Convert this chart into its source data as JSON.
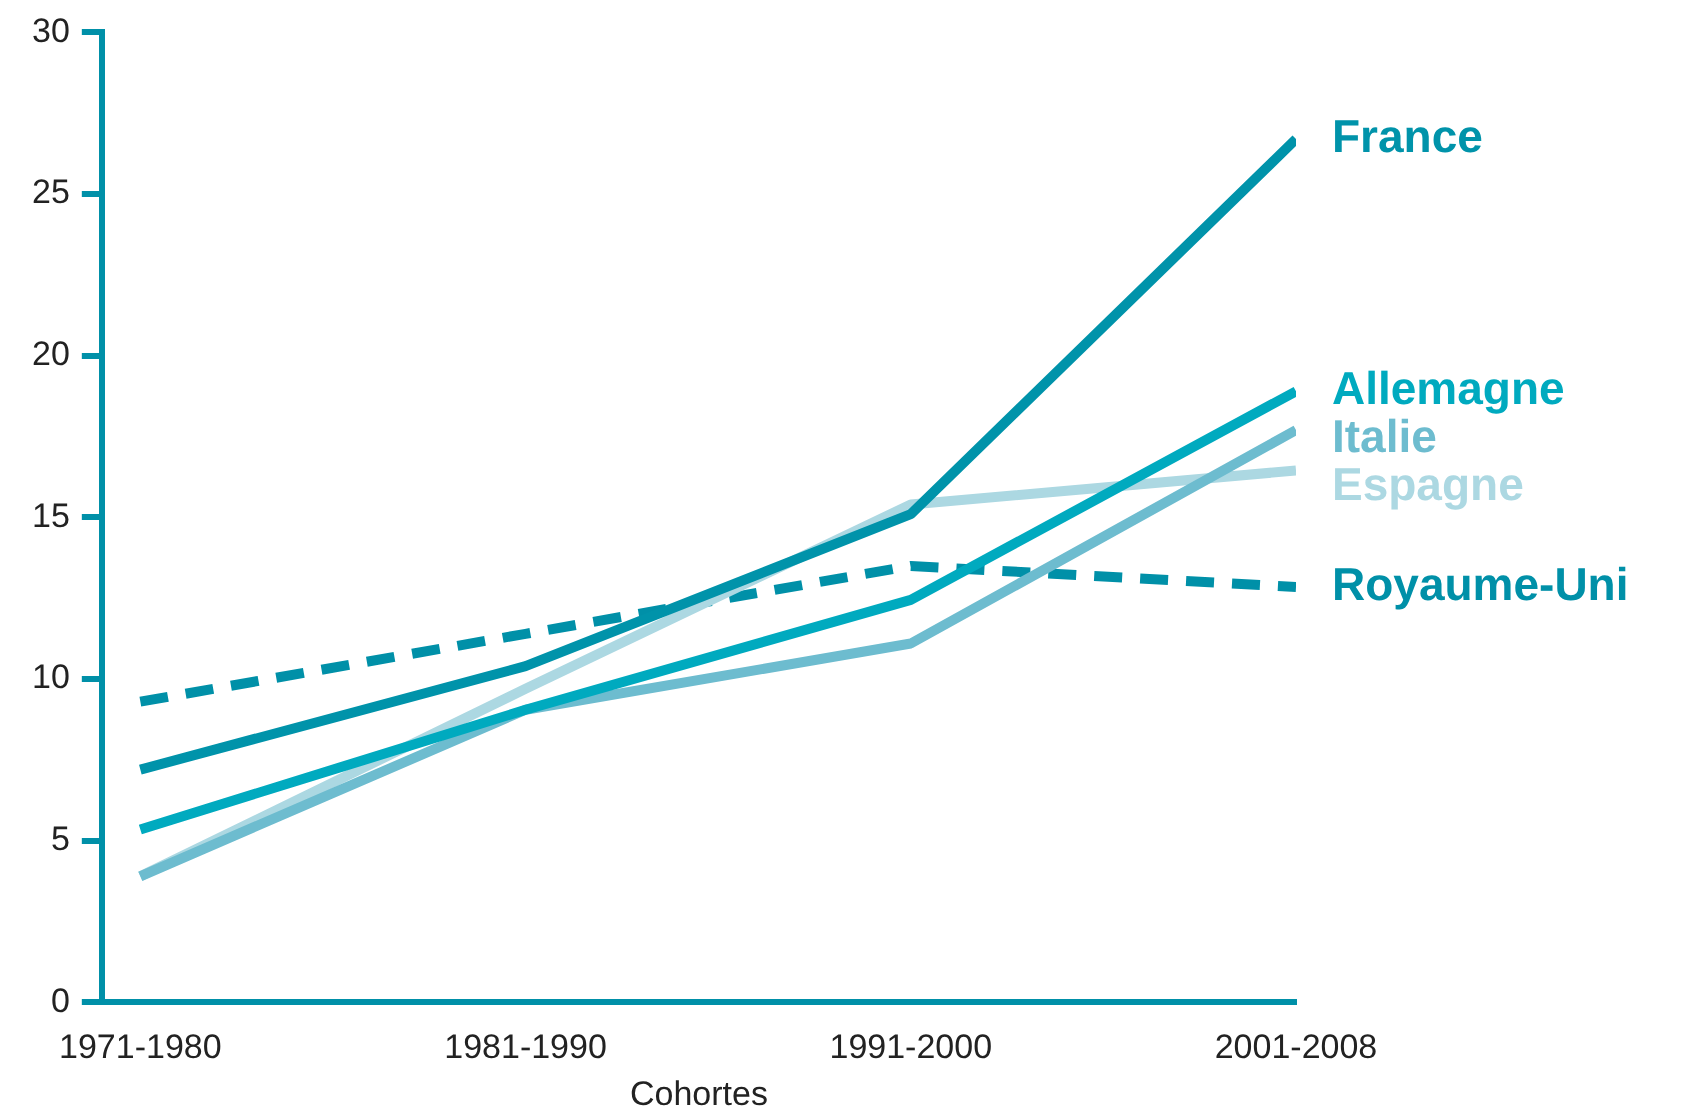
{
  "chart_data": {
    "type": "line",
    "xlabel": "Cohortes",
    "categories": [
      "1971-1980",
      "1981-1990",
      "1991-2000",
      "2001-2008"
    ],
    "ylim": [
      0,
      30
    ],
    "yticks": [
      0,
      5,
      10,
      15,
      20,
      25,
      30
    ],
    "grid": false,
    "legend": false,
    "marker": "none",
    "series": [
      {
        "name": "France",
        "color": "#0093aa",
        "values": [
          7.2,
          10.4,
          15.1,
          26.7
        ]
      },
      {
        "name": "Allemagne",
        "color": "#00aabf",
        "values": [
          5.35,
          9.05,
          12.45,
          18.9
        ]
      },
      {
        "name": "Italie",
        "color": "#6dbccf",
        "values": [
          3.9,
          9.05,
          11.1,
          17.7
        ]
      },
      {
        "name": "Espagne",
        "color": "#acd8e2",
        "values": [
          3.9,
          9.7,
          15.4,
          16.45
        ]
      },
      {
        "name": "Royaume-Uni",
        "color": "#0090a8",
        "line_style": "dashed",
        "values": [
          9.3,
          11.4,
          13.5,
          12.85
        ]
      }
    ]
  }
}
